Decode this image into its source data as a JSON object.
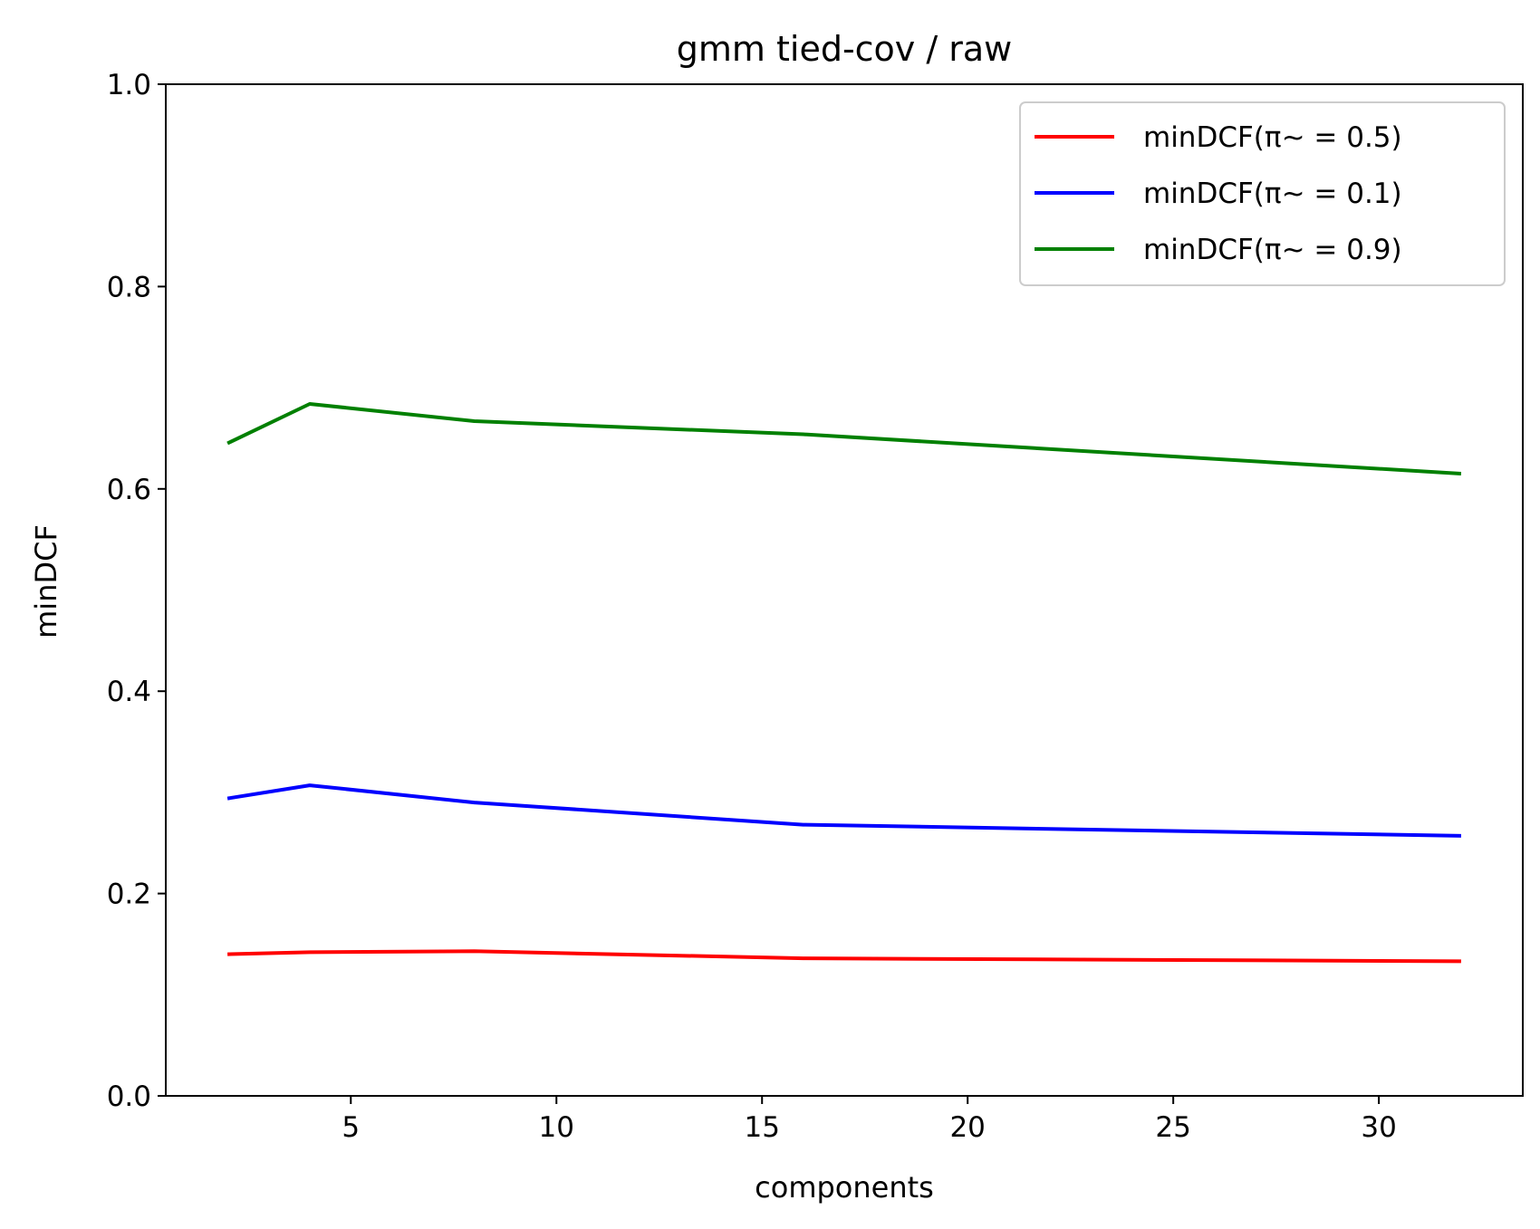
{
  "chart_data": {
    "type": "line",
    "title": "gmm tied-cov / raw",
    "xlabel": "components",
    "ylabel": "minDCF",
    "xlim": [
      0.5,
      33.5
    ],
    "ylim": [
      0.0,
      1.0
    ],
    "xticks": [
      5,
      10,
      15,
      20,
      25,
      30
    ],
    "xtick_labels": [
      "5",
      "10",
      "15",
      "20",
      "25",
      "30"
    ],
    "yticks": [
      0.0,
      0.2,
      0.4,
      0.6,
      0.8,
      1.0
    ],
    "ytick_labels": [
      "0.0",
      "0.2",
      "0.4",
      "0.6",
      "0.8",
      "1.0"
    ],
    "grid": false,
    "legend_position": "top-right",
    "x": [
      2,
      4,
      8,
      16,
      32
    ],
    "series": [
      {
        "name": "minDCF(π~ = 0.5)",
        "color": "#ff0000",
        "values": [
          0.14,
          0.142,
          0.143,
          0.136,
          0.133
        ]
      },
      {
        "name": "minDCF(π~ = 0.1)",
        "color": "#0000ff",
        "values": [
          0.294,
          0.307,
          0.29,
          0.268,
          0.257
        ]
      },
      {
        "name": "minDCF(π~ = 0.9)",
        "color": "#008000",
        "values": [
          0.645,
          0.684,
          0.667,
          0.654,
          0.615
        ]
      }
    ]
  }
}
